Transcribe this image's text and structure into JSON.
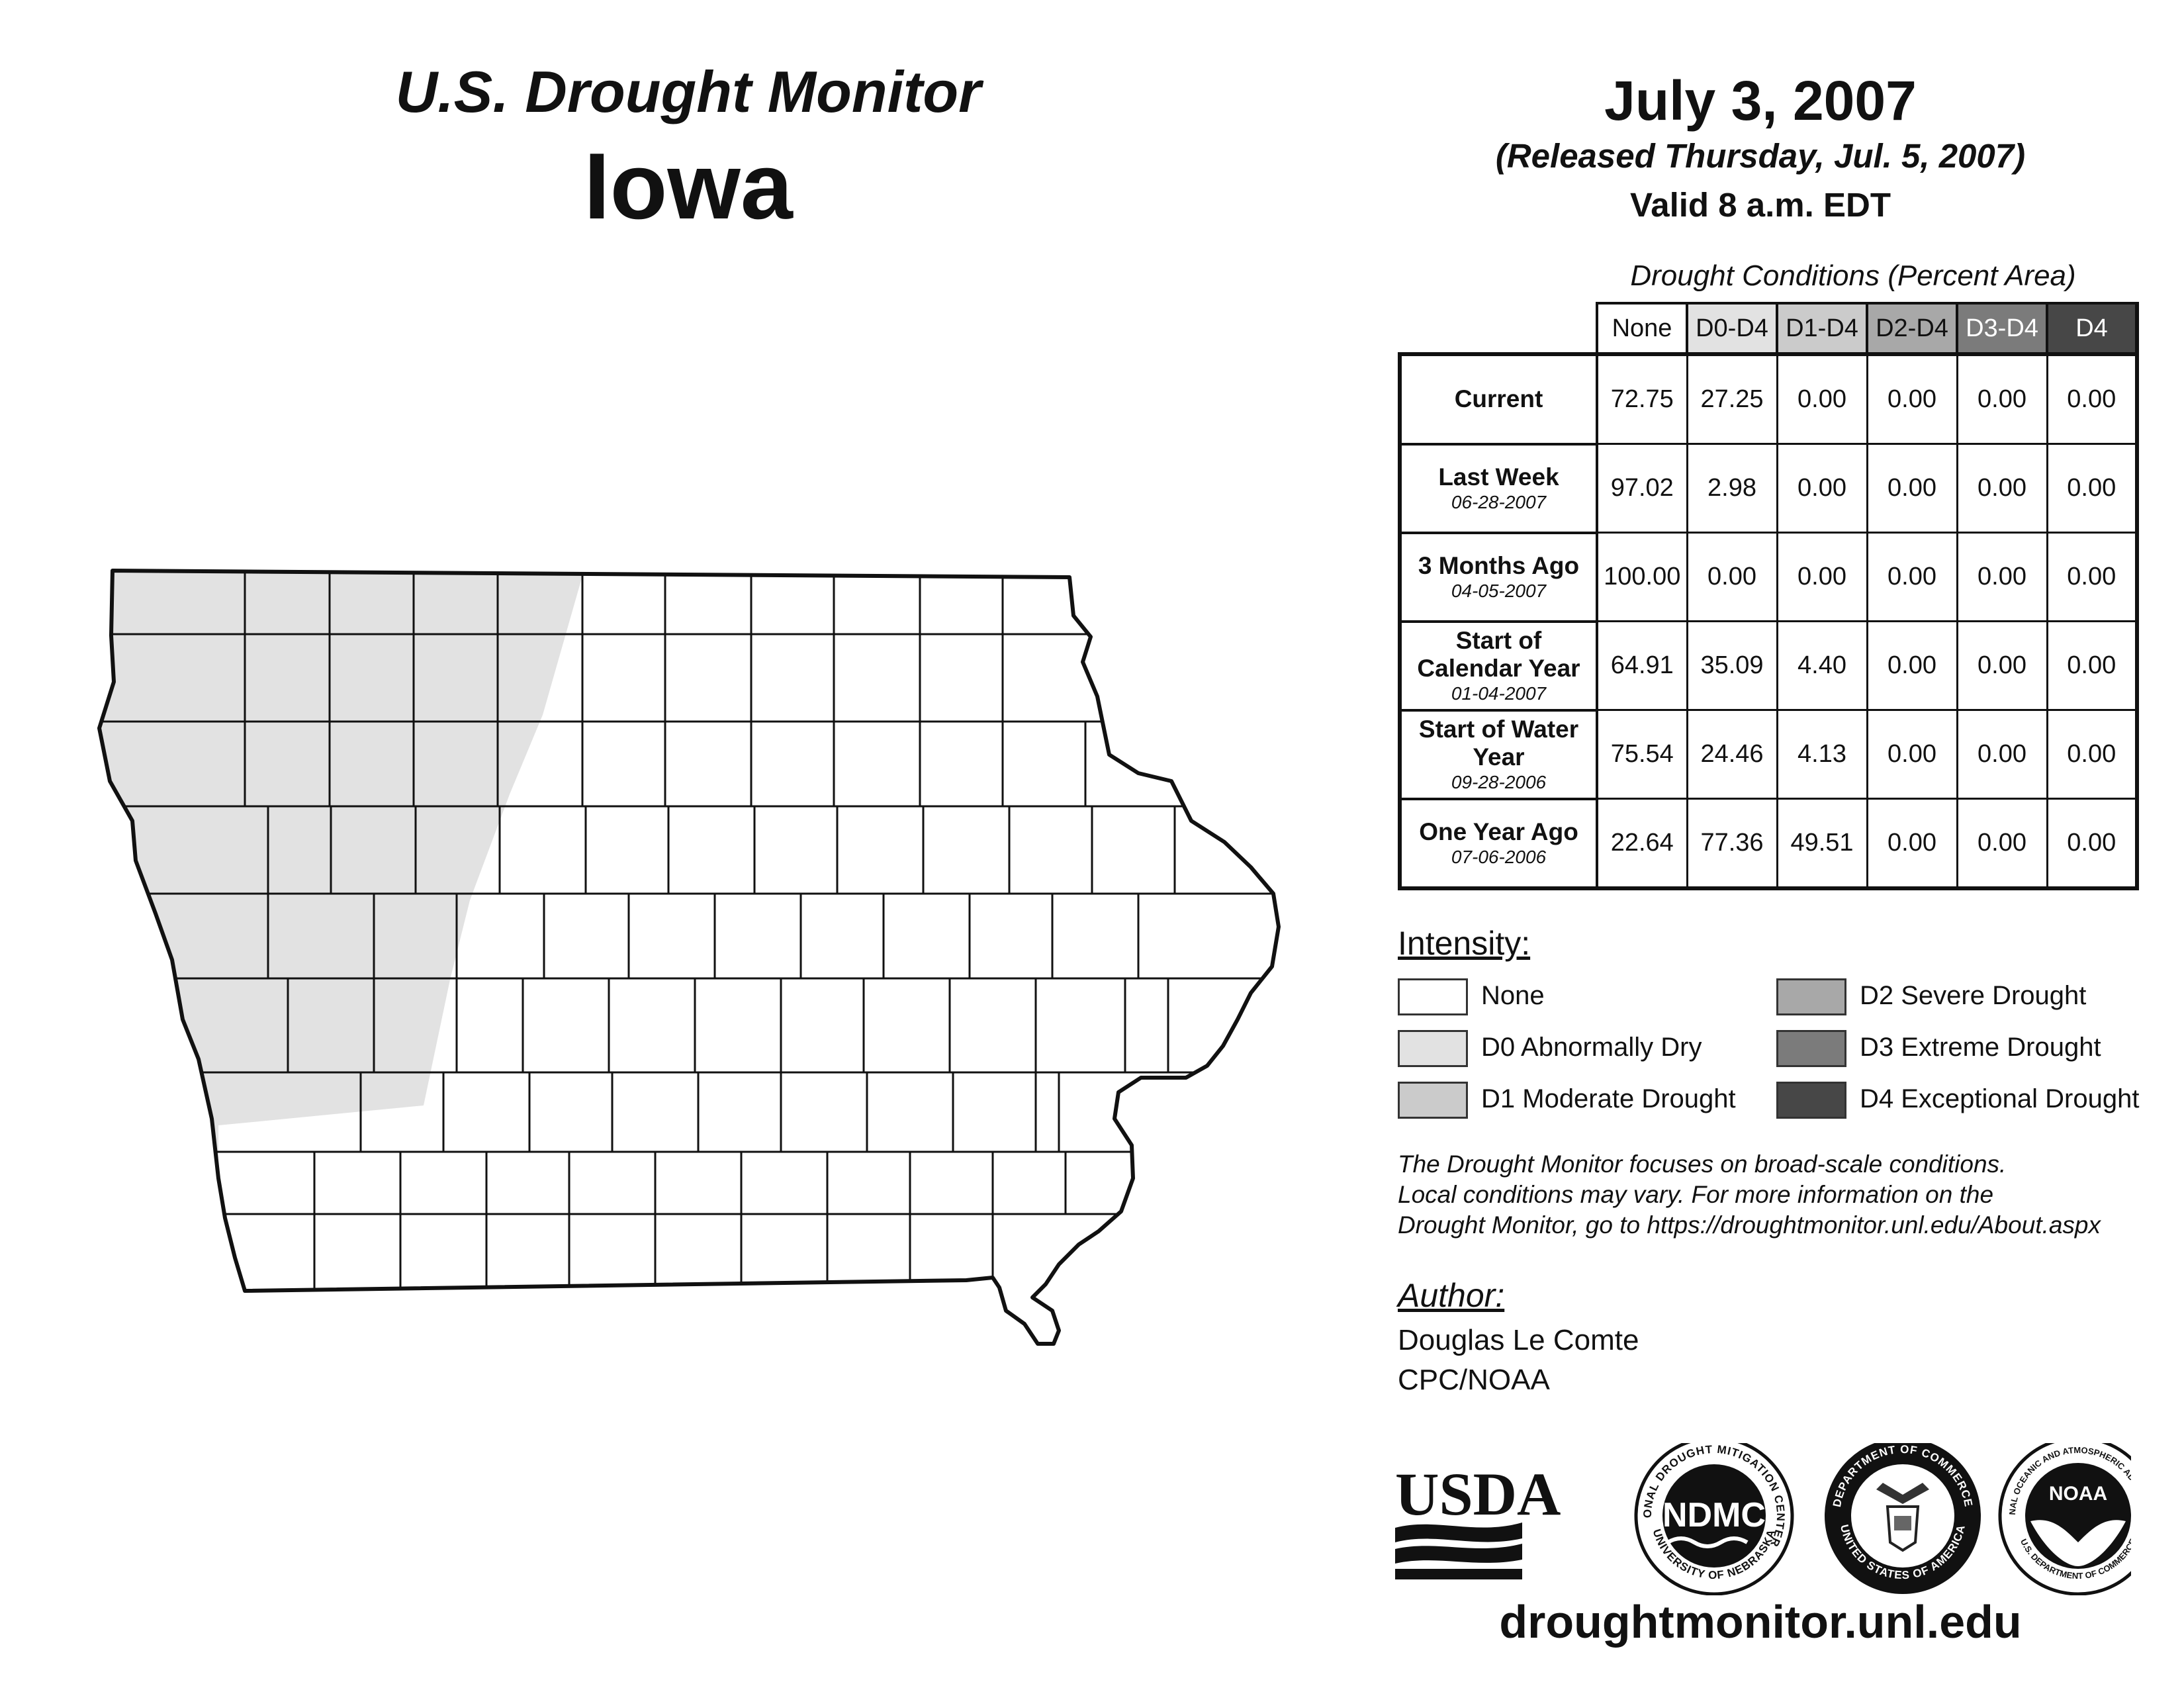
{
  "header": {
    "title": "U.S. Drought Monitor",
    "state": "Iowa",
    "date": "July 3, 2007",
    "released": "(Released Thursday, Jul. 5, 2007)",
    "valid": "Valid 8 a.m. EDT"
  },
  "table": {
    "caption": "Drought Conditions (Percent Area)",
    "columns": [
      {
        "label": "None",
        "color": "#ffffff",
        "text_color": "#111111"
      },
      {
        "label": "D0-D4",
        "color": "#e2e2e2",
        "text_color": "#111111"
      },
      {
        "label": "D1-D4",
        "color": "#cbcbcb",
        "text_color": "#111111"
      },
      {
        "label": "D2-D4",
        "color": "#a8a8a8",
        "text_color": "#111111"
      },
      {
        "label": "D3-D4",
        "color": "#7b7b7b",
        "text_color": "#ffffff"
      },
      {
        "label": "D4",
        "color": "#474747",
        "text_color": "#ffffff"
      }
    ],
    "rows": [
      {
        "label": "Current",
        "date": "",
        "values": [
          "72.75",
          "27.25",
          "0.00",
          "0.00",
          "0.00",
          "0.00"
        ]
      },
      {
        "label": "Last Week",
        "date": "06-28-2007",
        "values": [
          "97.02",
          "2.98",
          "0.00",
          "0.00",
          "0.00",
          "0.00"
        ]
      },
      {
        "label": "3 Months Ago",
        "date": "04-05-2007",
        "values": [
          "100.00",
          "0.00",
          "0.00",
          "0.00",
          "0.00",
          "0.00"
        ]
      },
      {
        "label": "Start of Calendar Year",
        "date": "01-04-2007",
        "values": [
          "64.91",
          "35.09",
          "4.40",
          "0.00",
          "0.00",
          "0.00"
        ]
      },
      {
        "label": "Start of Water Year",
        "date": "09-28-2006",
        "values": [
          "75.54",
          "24.46",
          "4.13",
          "0.00",
          "0.00",
          "0.00"
        ]
      },
      {
        "label": "One Year Ago",
        "date": "07-06-2006",
        "values": [
          "22.64",
          "77.36",
          "49.51",
          "0.00",
          "0.00",
          "0.00"
        ]
      }
    ]
  },
  "legend": {
    "title": "Intensity:",
    "items": [
      {
        "label": "None",
        "color": "#ffffff"
      },
      {
        "label": "D0 Abnormally Dry",
        "color": "#e2e2e2"
      },
      {
        "label": "D1 Moderate Drought",
        "color": "#cbcbcb"
      },
      {
        "label": "D2 Severe Drought",
        "color": "#a8a8a8"
      },
      {
        "label": "D3 Extreme Drought",
        "color": "#7b7b7b"
      },
      {
        "label": "D4 Exceptional Drought",
        "color": "#474747"
      }
    ]
  },
  "note": {
    "line1": "The Drought Monitor focuses on broad-scale conditions.",
    "line2": "Local conditions may vary. For more information on the",
    "line3": "Drought Monitor, go to https://droughtmonitor.unl.edu/About.aspx"
  },
  "author": {
    "title": "Author:",
    "name": "Douglas Le Comte",
    "org": "CPC/NOAA"
  },
  "logos": {
    "usda": "USDA",
    "ndmc": "NDMC",
    "ndmc_ring_top": "NATIONAL DROUGHT MITIGATION CENTER",
    "ndmc_ring_bottom": "UNIVERSITY OF NEBRASKA",
    "doc_ring_top": "DEPARTMENT OF COMMERCE",
    "doc_ring_bottom": "UNITED STATES OF AMERICA",
    "noaa": "NOAA",
    "noaa_ring_top": "NATIONAL OCEANIC AND ATMOSPHERIC ADMINISTRATION",
    "noaa_ring_bottom": "U.S. DEPARTMENT OF COMMERCE"
  },
  "footer": {
    "url": "droughtmonitor.unl.edu"
  },
  "map": {
    "state_fill": "#ffffff",
    "d0_fill": "#e2e2e2",
    "drought_regions": [
      {
        "category": "D0 Abnormally Dry",
        "area": "Northwest and western Iowa"
      }
    ]
  }
}
